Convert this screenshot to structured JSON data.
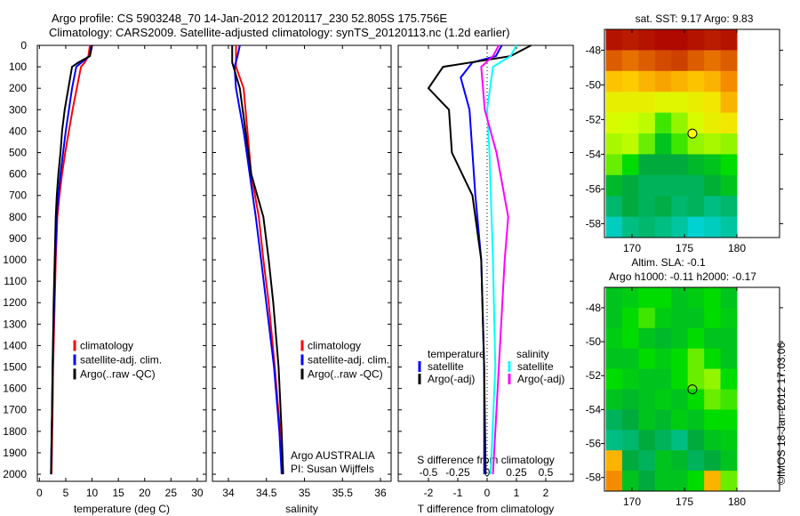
{
  "title": {
    "line1": "Argo profile: CS 5903248_70 14-Jan-2012 20120117_230 52.805S 175.756E",
    "line2": "Climatology: CARS2009. Satellite-adjusted climatology: synTS_20120113.nc (1.2d earlier)"
  },
  "side_label": "©IMOS 18-Jan-2012 17:03:06",
  "chart_data": [
    {
      "type": "line",
      "xlabel": "temperature (deg C)",
      "xlim": [
        -0.4,
        31.7
      ],
      "ylim": [
        0,
        2033
      ],
      "xticks": [
        0,
        5,
        10,
        15,
        20,
        25,
        30
      ],
      "yticks": [
        0,
        100,
        200,
        300,
        400,
        500,
        600,
        700,
        800,
        900,
        1000,
        1100,
        1200,
        1300,
        1400,
        1500,
        1600,
        1700,
        1800,
        1900,
        2000
      ],
      "legend": [
        "climatology",
        "satellite-adj. clim.",
        "Argo(..raw -QC)"
      ],
      "series": [
        {
          "name": "climatology",
          "color": "#ff0000",
          "depth": [
            0,
            50,
            80,
            100,
            200,
            300,
            400,
            500,
            600,
            700,
            800,
            1000,
            1200,
            1500,
            1700,
            2000
          ],
          "values": [
            9.6,
            9.3,
            8.6,
            7.9,
            7.1,
            6.3,
            5.6,
            4.9,
            4.3,
            3.8,
            3.4,
            3.1,
            2.9,
            2.6,
            2.5,
            2.3
          ]
        },
        {
          "name": "satellite-adj. clim.",
          "color": "#0000ff",
          "depth": [
            0,
            50,
            80,
            100,
            200,
            300,
            400,
            500,
            600,
            700,
            800,
            1000,
            1200,
            1500,
            1700,
            2000
          ],
          "values": [
            9.9,
            9.5,
            8,
            7,
            6.2,
            5.6,
            5,
            4.5,
            4,
            3.6,
            3.3,
            3,
            2.8,
            2.5,
            2.4,
            2.2
          ]
        },
        {
          "name": "Argo(..raw -QC)",
          "color": "#000000",
          "depth": [
            0,
            50,
            80,
            100,
            200,
            300,
            400,
            500,
            600,
            700,
            800,
            1000,
            1200,
            1500,
            1700,
            2000
          ],
          "values": [
            10,
            9.6,
            7.4,
            6.2,
            5.5,
            4.8,
            4.3,
            4,
            3.6,
            3.3,
            3.1,
            2.9,
            2.7,
            2.5,
            2.4,
            2.2
          ]
        }
      ]
    },
    {
      "type": "line",
      "xlabel": "salinity",
      "xlim": [
        33.79,
        36.14
      ],
      "ylim": [
        0,
        2033
      ],
      "xticks": [
        34,
        34.5,
        35,
        35.5,
        36
      ],
      "legend": [
        "climatology",
        "satellite-adj. clim.",
        "Argo(..raw -QC)"
      ],
      "annotation": [
        "Argo AUSTRALIA",
        "PI: Susan Wijffels"
      ],
      "series": [
        {
          "name": "climatology",
          "color": "#ff0000",
          "depth": [
            0,
            100,
            200,
            400,
            600,
            800,
            1000,
            1200,
            1500,
            1800,
            2000
          ],
          "values": [
            34.1,
            34.1,
            34.2,
            34.25,
            34.3,
            34.4,
            34.46,
            34.53,
            34.61,
            34.68,
            34.72
          ]
        },
        {
          "name": "satellite-adj. clim.",
          "color": "#0000ff",
          "depth": [
            0,
            50,
            100,
            200,
            400,
            800,
            1000,
            1500,
            1800,
            2000
          ],
          "values": [
            34.15,
            34.12,
            34.08,
            34.1,
            34.2,
            34.36,
            34.43,
            34.6,
            34.67,
            34.7
          ]
        },
        {
          "name": "Argo(..raw -QC)",
          "color": "#000000",
          "depth": [
            0,
            80,
            200,
            600,
            800,
            1000,
            1200,
            1500,
            1800,
            2000
          ],
          "values": [
            34.05,
            34.05,
            34.15,
            34.3,
            34.46,
            34.53,
            34.59,
            34.66,
            34.7,
            34.72
          ]
        }
      ]
    },
    {
      "type": "line",
      "xlabel": "T difference from climatology",
      "x2label": "S difference from climatology",
      "xlim": [
        -3.03,
        2.94
      ],
      "ylim": [
        0,
        2033
      ],
      "xticks": [
        -2,
        -1,
        0,
        1,
        2
      ],
      "x2ticks": [
        -0.5,
        -0.25,
        0,
        0.25,
        0.5
      ],
      "x2labels": [
        "-0.5",
        "-0.25",
        "0",
        "0.25",
        "0.5"
      ],
      "legend": {
        "temp_title": "temperature",
        "sal_title": "salinity",
        "items": [
          "satellite",
          "Argo(-adj)",
          "satellite",
          "Argo(-adj)"
        ]
      },
      "series": [
        {
          "name": "T satellite",
          "color": "#0000ff",
          "units": "T",
          "depth": [
            0,
            50,
            80,
            150,
            300,
            500,
            700,
            1000,
            1500,
            2000
          ],
          "values": [
            0.5,
            0.3,
            -0.5,
            -0.9,
            -0.6,
            -0.5,
            -0.4,
            -0.2,
            -0.1,
            -0.1
          ]
        },
        {
          "name": "T Argo(-adj)",
          "color": "#000000",
          "units": "T",
          "depth": [
            0,
            50,
            100,
            200,
            300,
            500,
            700,
            1000,
            1500,
            2000
          ],
          "values": [
            1.5,
            0.8,
            -1.5,
            -2,
            -1.3,
            -1.2,
            -0.5,
            -0.2,
            -0.1,
            -0.05
          ]
        },
        {
          "name": "S satellite",
          "color": "#00ffff",
          "units": "S",
          "depth": [
            0,
            50,
            100,
            300,
            500,
            1000,
            1500,
            2000
          ],
          "values": [
            0.25,
            0.2,
            0.05,
            0,
            0.02,
            0.05,
            0.07,
            0.03
          ]
        },
        {
          "name": "S Argo(-adj)",
          "color": "#ff00ff",
          "units": "S",
          "depth": [
            0,
            50,
            100,
            300,
            500,
            800,
            1000,
            1500,
            2000
          ],
          "values": [
            0.1,
            0.05,
            -0.05,
            -0.02,
            0.08,
            0.18,
            0.15,
            0.1,
            0.05
          ]
        }
      ]
    },
    {
      "type": "heatmap",
      "title": "sat. SST: 9.17 Argo: 9.83",
      "lon": [
        167.5,
        180
      ],
      "lat": [
        -46.8,
        -58.8
      ],
      "xticks": [
        170,
        175,
        180
      ],
      "yticks": [
        -48,
        -50,
        -52,
        -54,
        -56,
        -58
      ],
      "marker": [
        175.756,
        -52.805
      ],
      "marker_color": "#ffff00",
      "grid": [
        [
          0.98,
          0.97,
          0.98,
          0.99,
          0.99,
          0.98,
          0.97,
          0.98
        ],
        [
          0.9,
          0.88,
          0.9,
          0.92,
          0.93,
          0.9,
          0.88,
          0.9
        ],
        [
          0.78,
          0.77,
          0.8,
          0.82,
          0.8,
          0.78,
          0.8,
          0.85
        ],
        [
          0.7,
          0.7,
          0.7,
          0.68,
          0.68,
          0.7,
          0.72,
          0.8
        ],
        [
          0.66,
          0.65,
          0.64,
          0.58,
          0.62,
          0.66,
          0.7,
          0.72
        ],
        [
          0.63,
          0.64,
          0.6,
          0.5,
          0.58,
          0.62,
          0.63,
          0.62
        ],
        [
          0.6,
          0.55,
          0.45,
          0.45,
          0.45,
          0.48,
          0.5,
          0.55
        ],
        [
          0.48,
          0.45,
          0.42,
          0.42,
          0.42,
          0.42,
          0.46,
          0.5
        ],
        [
          0.4,
          0.45,
          0.42,
          0.44,
          0.4,
          0.42,
          0.38,
          0.4
        ],
        [
          0.32,
          0.38,
          0.4,
          0.38,
          0.35,
          0.3,
          0.32,
          0.35
        ]
      ]
    },
    {
      "type": "heatmap",
      "title": "Altim. SLA: -0.1",
      "subtitle": "Argo h1000: -0.11 h2000: -0.17",
      "lon": [
        167.5,
        180
      ],
      "lat": [
        -46.8,
        -58.8
      ],
      "xticks": [
        170,
        175,
        180
      ],
      "yticks": [
        -48,
        -50,
        -52,
        -54,
        -56,
        -58
      ],
      "marker": [
        175.756,
        -52.805
      ],
      "grid": [
        [
          0.5,
          0.52,
          0.55,
          0.55,
          0.5,
          0.52,
          0.55,
          0.5
        ],
        [
          0.5,
          0.55,
          0.58,
          0.52,
          0.5,
          0.5,
          0.55,
          0.52
        ],
        [
          0.52,
          0.55,
          0.5,
          0.48,
          0.5,
          0.55,
          0.5,
          0.5
        ],
        [
          0.5,
          0.5,
          0.55,
          0.52,
          0.55,
          0.6,
          0.55,
          0.5
        ],
        [
          0.55,
          0.52,
          0.5,
          0.5,
          0.55,
          0.6,
          0.62,
          0.55
        ],
        [
          0.5,
          0.48,
          0.5,
          0.52,
          0.5,
          0.55,
          0.6,
          0.58
        ],
        [
          0.42,
          0.45,
          0.5,
          0.48,
          0.52,
          0.5,
          0.55,
          0.55
        ],
        [
          0.38,
          0.4,
          0.45,
          0.42,
          0.38,
          0.45,
          0.5,
          0.52
        ],
        [
          0.8,
          0.45,
          0.42,
          0.5,
          0.48,
          0.42,
          0.45,
          0.5
        ],
        [
          0.85,
          0.5,
          0.45,
          0.5,
          0.5,
          0.55,
          0.8,
          0.6
        ]
      ]
    }
  ]
}
